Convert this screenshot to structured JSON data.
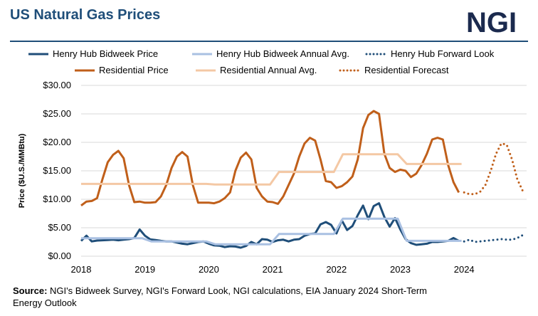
{
  "title": "US Natural Gas Prices",
  "logo": "NGI",
  "source_label": "Source:",
  "source_text": " NGI's Bidweek Survey, NGI's Forward Look, NGI calculations, EIA January 2024 Short-Term",
  "source_text2": "Energy Outlook",
  "colors": {
    "title": "#1f4e79",
    "henry_hub": "#1f4e79",
    "henry_hub_avg": "#a9c0e2",
    "residential": "#c05f1a",
    "residential_avg": "#f4c8a4"
  },
  "chart_data": {
    "type": "line",
    "title": "US Natural Gas Prices",
    "ylabel": "Price ($U.S./MMBtu)",
    "xlabel": "",
    "ylim": [
      0,
      30
    ],
    "xlim": [
      2018,
      2025
    ],
    "yticks": [
      "$0.00",
      "$5.00",
      "$10.00",
      "$15.00",
      "$20.00",
      "$25.00",
      "$30.00"
    ],
    "xticks": [
      "2018",
      "2019",
      "2020",
      "2021",
      "2022",
      "2023",
      "2024"
    ],
    "grid": true,
    "legend_placement": "top",
    "series": [
      {
        "name": "Henry Hub Bidweek Price",
        "style": "solid",
        "color": "#1f4e79",
        "start_year": 2018,
        "values": [
          2.7,
          3.6,
          2.6,
          2.75,
          2.8,
          2.85,
          2.9,
          2.8,
          2.9,
          3.0,
          3.2,
          4.7,
          3.6,
          2.95,
          2.85,
          2.7,
          2.6,
          2.6,
          2.4,
          2.2,
          2.1,
          2.3,
          2.5,
          2.6,
          2.2,
          1.9,
          1.85,
          1.6,
          1.75,
          1.7,
          1.5,
          1.8,
          2.5,
          2.1,
          3.0,
          2.9,
          2.5,
          2.8,
          2.9,
          2.6,
          2.9,
          3.0,
          3.6,
          3.9,
          4.0,
          5.6,
          6.0,
          5.5,
          4.0,
          6.3,
          4.6,
          5.3,
          7.2,
          8.9,
          6.5,
          8.8,
          9.3,
          6.9,
          5.2,
          6.7,
          4.7,
          3.0,
          2.3,
          2.0,
          2.1,
          2.2,
          2.5,
          2.5,
          2.6,
          2.7,
          3.2,
          2.7
        ]
      },
      {
        "name": "Henry Hub Bidweek Annual Avg.",
        "style": "step",
        "color": "#a9c0e2",
        "start_year": 2018,
        "annual_values": [
          3.15,
          2.6,
          2.1,
          3.9,
          6.6,
          2.7
        ]
      },
      {
        "name": "Henry Hub Forward Look",
        "style": "dotted",
        "color": "#1f4e79",
        "start_year": 2024,
        "values": [
          2.6,
          2.9,
          2.5,
          2.6,
          2.7,
          2.8,
          2.9,
          3.0,
          2.9,
          2.9,
          3.2,
          3.7
        ]
      },
      {
        "name": "Residential Price",
        "style": "solid",
        "color": "#c05f1a",
        "start_year": 2018,
        "values": [
          8.9,
          9.6,
          9.7,
          10.2,
          13.5,
          16.5,
          17.8,
          18.5,
          17.2,
          12.5,
          9.5,
          9.6,
          9.4,
          9.4,
          9.5,
          10.5,
          12.5,
          15.5,
          17.5,
          18.3,
          17.5,
          12.5,
          9.4,
          9.4,
          9.4,
          9.3,
          9.6,
          10.2,
          11.2,
          15.0,
          17.3,
          18.2,
          17.0,
          12.0,
          10.5,
          9.6,
          9.5,
          9.2,
          10.5,
          12.5,
          14.5,
          17.5,
          19.8,
          20.8,
          20.3,
          17.0,
          13.2,
          13.0,
          12.0,
          12.3,
          13.0,
          14.0,
          17.0,
          22.5,
          24.8,
          25.5,
          25.0,
          18.0,
          15.5,
          14.8,
          15.2,
          15.0,
          13.9,
          14.5,
          16.0,
          18.0,
          20.5,
          20.8,
          20.5,
          16.0,
          13.0,
          11.2
        ]
      },
      {
        "name": "Residential Annual Avg.",
        "style": "step",
        "color": "#f4c8a4",
        "start_year": 2018,
        "annual_values": [
          12.7,
          12.7,
          12.6,
          14.8,
          17.9,
          16.2
        ]
      },
      {
        "name": "Residential Forecast",
        "style": "dotted",
        "color": "#c05f1a",
        "start_year": 2024,
        "values": [
          11.2,
          10.9,
          10.9,
          11.3,
          12.5,
          15.0,
          18.0,
          19.8,
          19.6,
          17.0,
          13.5,
          11.5
        ]
      }
    ]
  }
}
